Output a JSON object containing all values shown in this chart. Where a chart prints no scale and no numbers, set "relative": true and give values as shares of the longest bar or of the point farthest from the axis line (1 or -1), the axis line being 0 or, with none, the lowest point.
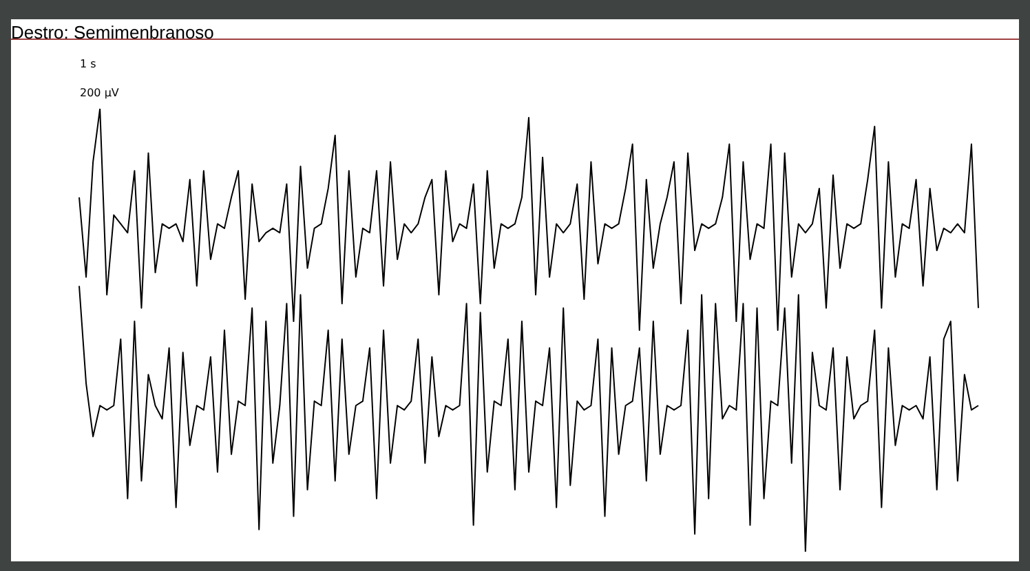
{
  "chart_data": {
    "type": "line",
    "title": "Destro: Semimenbranoso",
    "relative": true,
    "grid": false,
    "marker": "none",
    "line_style": "solid",
    "annotations": [
      "1 s",
      "200 µV"
    ],
    "categories": [
      null,
      null,
      null,
      null,
      null,
      null,
      null,
      null,
      null,
      null,
      null,
      null,
      null,
      null,
      null,
      null,
      null,
      null,
      null,
      null,
      null,
      null,
      null,
      null,
      null,
      null,
      null,
      null,
      null,
      null,
      null,
      null,
      null,
      null,
      null,
      null,
      null,
      null,
      null,
      null,
      null,
      null,
      null,
      null,
      null,
      null,
      null,
      null,
      null,
      null,
      null,
      null,
      null,
      null,
      null,
      null,
      null,
      null,
      null,
      null,
      null,
      null,
      null,
      null,
      null,
      null,
      null,
      null,
      null,
      null,
      null,
      null,
      null,
      null,
      null,
      null,
      null,
      null,
      null,
      null,
      null,
      null,
      null,
      null,
      null,
      null,
      null,
      null,
      null,
      null,
      null,
      null,
      null,
      null,
      null,
      null,
      null,
      null,
      null,
      null,
      null,
      null,
      null,
      null,
      null,
      null,
      null,
      null,
      null,
      null,
      null,
      null,
      null,
      null,
      null,
      null,
      null,
      null,
      null,
      null,
      null,
      null,
      null,
      null,
      null,
      null,
      null,
      null,
      null,
      null,
      null
    ],
    "series": [
      {
        "color": "#000000",
        "values": [
          0.8,
          0.62,
          0.88,
          1.0,
          0.58,
          0.76,
          0.74,
          0.72,
          0.86,
          0.55,
          0.9,
          0.63,
          0.74,
          0.73,
          0.74,
          0.7,
          0.84,
          0.6,
          0.86,
          0.66,
          0.74,
          0.73,
          0.8,
          0.86,
          0.57,
          0.83,
          0.7,
          0.72,
          0.73,
          0.72,
          0.83,
          0.52,
          0.87,
          0.64,
          0.73,
          0.74,
          0.82,
          0.94,
          0.56,
          0.86,
          0.62,
          0.73,
          0.72,
          0.86,
          0.6,
          0.88,
          0.66,
          0.74,
          0.72,
          0.74,
          0.8,
          0.84,
          0.58,
          0.86,
          0.7,
          0.74,
          0.73,
          0.83,
          0.56,
          0.86,
          0.64,
          0.74,
          0.73,
          0.74,
          0.8,
          0.98,
          0.58,
          0.89,
          0.62,
          0.74,
          0.72,
          0.74,
          0.83,
          0.57,
          0.88,
          0.65,
          0.74,
          0.73,
          0.74,
          0.82,
          0.92,
          0.5,
          0.84,
          0.64,
          0.74,
          0.8,
          0.88,
          0.56,
          0.9,
          0.68,
          0.74,
          0.73,
          0.74,
          0.8,
          0.92,
          0.52,
          0.88,
          0.66,
          0.74,
          0.73,
          0.92,
          0.5,
          0.9,
          0.62,
          0.74,
          0.72,
          0.74,
          0.82,
          0.55,
          0.85,
          0.64,
          0.74,
          0.73,
          0.74,
          0.84,
          0.96,
          0.55,
          0.88,
          0.62,
          0.74,
          0.73,
          0.84,
          0.6,
          0.82,
          0.68,
          0.73,
          0.72,
          0.74,
          0.72,
          0.92,
          0.55
        ]
      },
      {
        "color": "#000000",
        "values": [
          0.6,
          0.38,
          0.26,
          0.33,
          0.32,
          0.33,
          0.48,
          0.12,
          0.52,
          0.16,
          0.4,
          0.33,
          0.3,
          0.46,
          0.1,
          0.45,
          0.24,
          0.33,
          0.32,
          0.44,
          0.18,
          0.5,
          0.22,
          0.34,
          0.33,
          0.55,
          0.05,
          0.52,
          0.2,
          0.33,
          0.56,
          0.08,
          0.58,
          0.14,
          0.34,
          0.33,
          0.5,
          0.16,
          0.48,
          0.22,
          0.33,
          0.34,
          0.46,
          0.12,
          0.5,
          0.2,
          0.33,
          0.32,
          0.34,
          0.48,
          0.2,
          0.44,
          0.26,
          0.33,
          0.32,
          0.33,
          0.56,
          0.06,
          0.54,
          0.18,
          0.34,
          0.33,
          0.48,
          0.14,
          0.52,
          0.18,
          0.34,
          0.33,
          0.46,
          0.1,
          0.55,
          0.15,
          0.34,
          0.32,
          0.33,
          0.48,
          0.08,
          0.46,
          0.22,
          0.33,
          0.34,
          0.46,
          0.16,
          0.52,
          0.22,
          0.33,
          0.32,
          0.33,
          0.5,
          0.04,
          0.58,
          0.12,
          0.56,
          0.3,
          0.33,
          0.32,
          0.56,
          0.06,
          0.55,
          0.12,
          0.34,
          0.33,
          0.55,
          0.2,
          0.58,
          0.0,
          0.45,
          0.33,
          0.32,
          0.46,
          0.14,
          0.44,
          0.3,
          0.33,
          0.34,
          0.5,
          0.1,
          0.46,
          0.24,
          0.33,
          0.32,
          0.33,
          0.3,
          0.44,
          0.14,
          0.48,
          0.52,
          0.16,
          0.4,
          0.32,
          0.33
        ]
      }
    ]
  }
}
